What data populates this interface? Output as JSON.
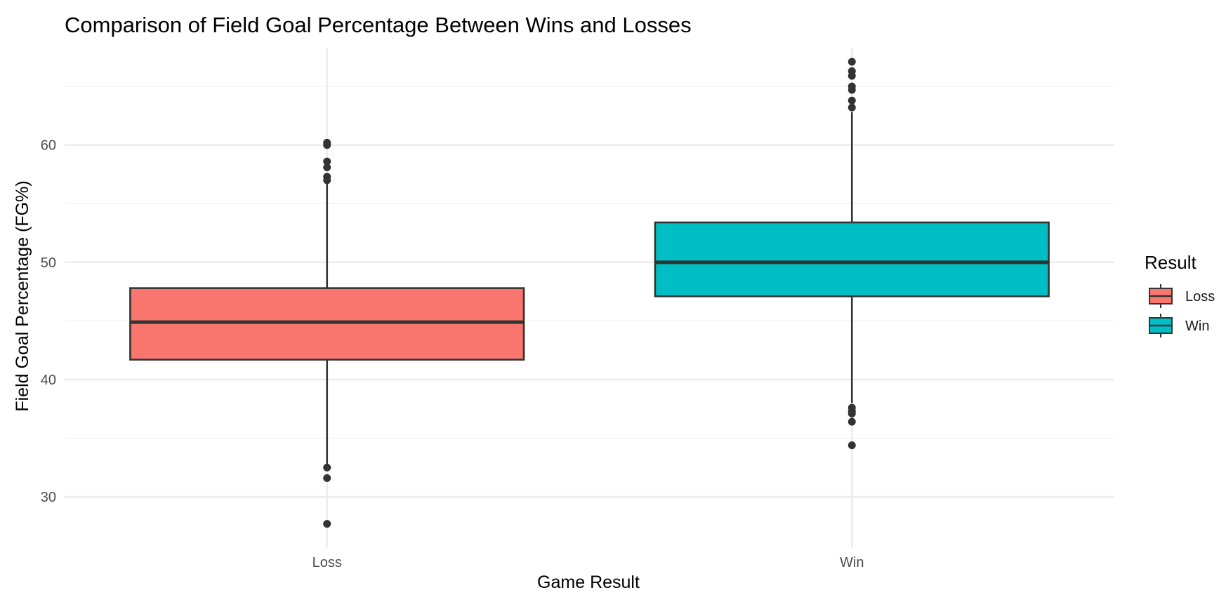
{
  "chart_data": {
    "type": "box",
    "title": "Comparison of Field Goal Percentage Between Wins and Losses",
    "xlabel": "Game Result",
    "ylabel": "Field Goal Percentage (FG%)",
    "categories": [
      "Loss",
      "Win"
    ],
    "ylim": [
      25.7,
      68.3
    ],
    "y_ticks": [
      30,
      40,
      50,
      60
    ],
    "y_tick_labels": [
      "30",
      "40",
      "50",
      "60"
    ],
    "grid": true,
    "legend": {
      "title": "Result",
      "position": "right",
      "entries": [
        "Loss",
        "Win"
      ]
    },
    "series": [
      {
        "name": "Loss",
        "color": "#F8766D",
        "q1": 41.7,
        "median": 44.9,
        "q3": 47.8,
        "whisker_low": 32.8,
        "whisker_high": 56.9,
        "outliers": [
          60.2,
          60.0,
          58.6,
          58.1,
          57.3,
          57.0,
          32.5,
          31.6,
          27.7
        ]
      },
      {
        "name": "Win",
        "color": "#00BFC4",
        "q1": 47.1,
        "median": 50.0,
        "q3": 53.4,
        "whisker_low": 38.0,
        "whisker_high": 62.8,
        "outliers": [
          67.1,
          66.3,
          65.9,
          65.0,
          64.7,
          63.8,
          63.2,
          37.6,
          37.3,
          37.1,
          36.4,
          34.4
        ]
      }
    ]
  }
}
